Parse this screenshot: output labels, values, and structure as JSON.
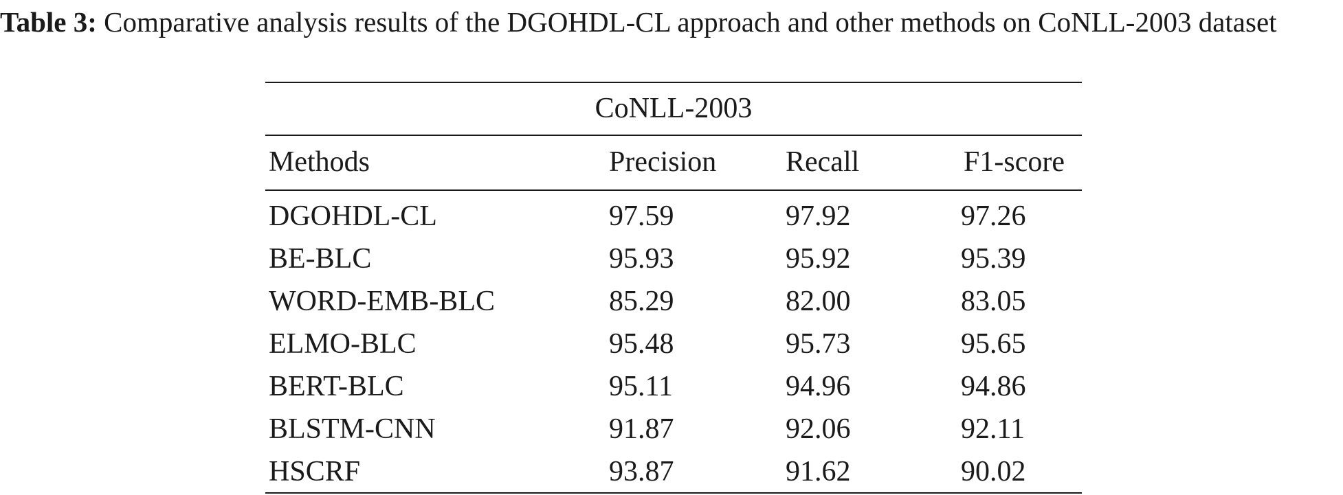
{
  "caption": {
    "label": "Table 3:",
    "text": "Comparative analysis results of the DGOHDL-CL approach and other methods on CoNLL-2003 dataset"
  },
  "table": {
    "dataset": "CoNLL-2003",
    "columns": [
      "Methods",
      "Precision",
      "Recall",
      "F1-score"
    ],
    "rows": [
      [
        "DGOHDL-CL",
        "97.59",
        "97.92",
        "97.26"
      ],
      [
        "BE-BLC",
        "95.93",
        "95.92",
        "95.39"
      ],
      [
        "WORD-EMB-BLC",
        "85.29",
        "82.00",
        "83.05"
      ],
      [
        "ELMO-BLC",
        "95.48",
        "95.73",
        "95.65"
      ],
      [
        "BERT-BLC",
        "95.11",
        "94.96",
        "94.86"
      ],
      [
        "BLSTM-CNN",
        "91.87",
        "92.06",
        "92.11"
      ],
      [
        "HSCRF",
        "93.87",
        "91.62",
        "90.02"
      ]
    ]
  }
}
